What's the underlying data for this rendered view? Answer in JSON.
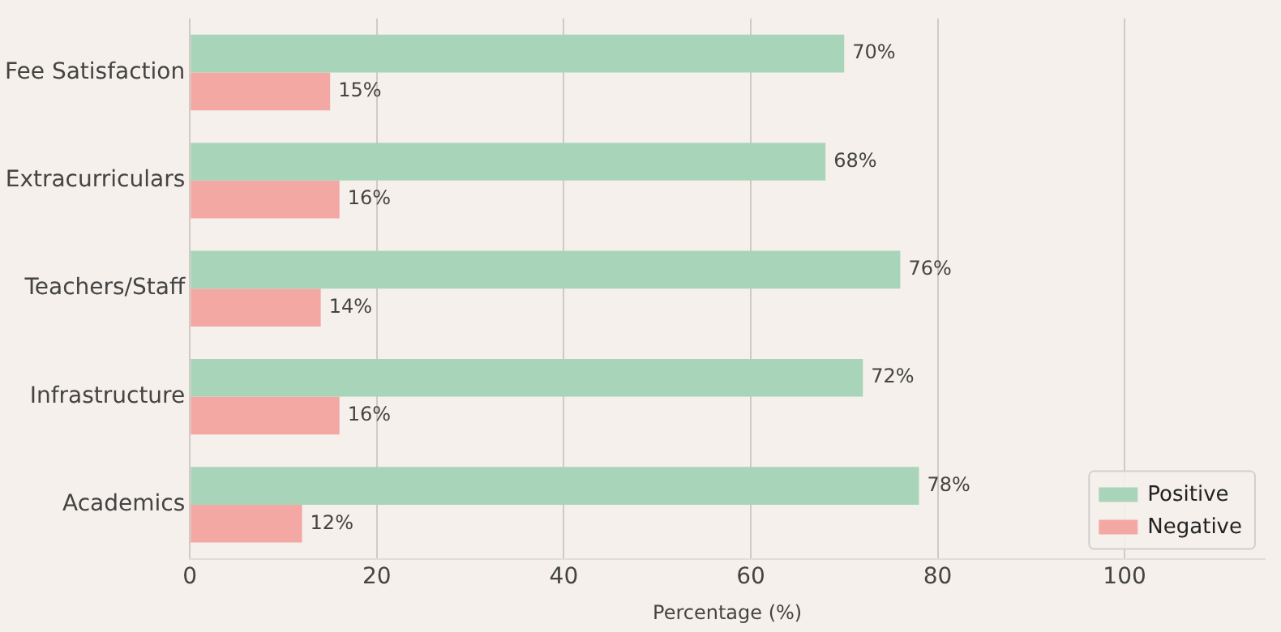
{
  "chart_data": {
    "type": "bar",
    "orientation": "horizontal",
    "categories": [
      "Fee Satisfaction",
      "Extracurriculars",
      "Teachers/Staff",
      "Infrastructure",
      "Academics"
    ],
    "series": [
      {
        "name": "Positive",
        "color": "#a8d5ba",
        "values": [
          70,
          68,
          76,
          72,
          78
        ],
        "value_labels": [
          "70%",
          "68%",
          "76%",
          "72%",
          "78%"
        ]
      },
      {
        "name": "Negative",
        "color": "#f4a8a4",
        "values": [
          15,
          16,
          14,
          16,
          12
        ],
        "value_labels": [
          "15%",
          "16%",
          "14%",
          "16%",
          "12%"
        ]
      }
    ],
    "xlabel": "Percentage (%)",
    "xlim": [
      0,
      115
    ],
    "xticks": [
      0,
      20,
      40,
      60,
      80,
      100
    ],
    "grid": "x",
    "legend": "bottom right"
  }
}
